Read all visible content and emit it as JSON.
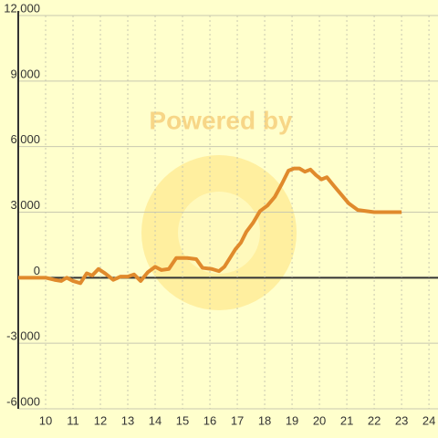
{
  "chart_data": {
    "type": "line",
    "watermark": "Powered by",
    "x": [
      9,
      10,
      10.33,
      10.57,
      10.77,
      11,
      11.27,
      11.5,
      11.7,
      11.93,
      12.17,
      12.47,
      12.73,
      13,
      13.23,
      13.47,
      13.73,
      14,
      14.23,
      14.5,
      14.77,
      15.17,
      15.5,
      15.73,
      16.07,
      16.33,
      16.53,
      16.73,
      16.93,
      17.13,
      17.33,
      17.57,
      17.83,
      18.1,
      18.37,
      18.63,
      18.87,
      19.07,
      19.27,
      19.47,
      19.67,
      19.87,
      20.07,
      20.27,
      20.53,
      20.8,
      21.07,
      21.4,
      22,
      23
    ],
    "series": [
      {
        "color": "#e08a2c",
        "values": [
          0,
          0,
          -100,
          -150,
          0,
          -150,
          -250,
          200,
          100,
          400,
          200,
          -100,
          50,
          50,
          150,
          -150,
          250,
          500,
          350,
          400,
          900,
          900,
          850,
          450,
          400,
          300,
          500,
          900,
          1300,
          1600,
          2100,
          2500,
          3050,
          3300,
          3700,
          4300,
          4900,
          5000,
          5000,
          4850,
          4950,
          4700,
          4500,
          4600,
          4200,
          3800,
          3400,
          3100,
          3000,
          3000
        ]
      }
    ],
    "xlim": [
      9,
      24.33
    ],
    "xticks": [
      10,
      11,
      12,
      13,
      14,
      15,
      16,
      17,
      18,
      19,
      20,
      21,
      22,
      23,
      24
    ],
    "ylim": [
      -6000,
      12000
    ],
    "yticks": [
      {
        "value": -6000,
        "label": "-6,000"
      },
      {
        "value": -3000,
        "label": "-3,000"
      },
      0,
      {
        "value": 3000,
        "label": "3,000"
      },
      {
        "value": 6000,
        "label": "6,000"
      },
      {
        "value": 9000,
        "label": "9,000"
      },
      {
        "value": 12000,
        "label": "12,000"
      }
    ],
    "grid": true
  }
}
